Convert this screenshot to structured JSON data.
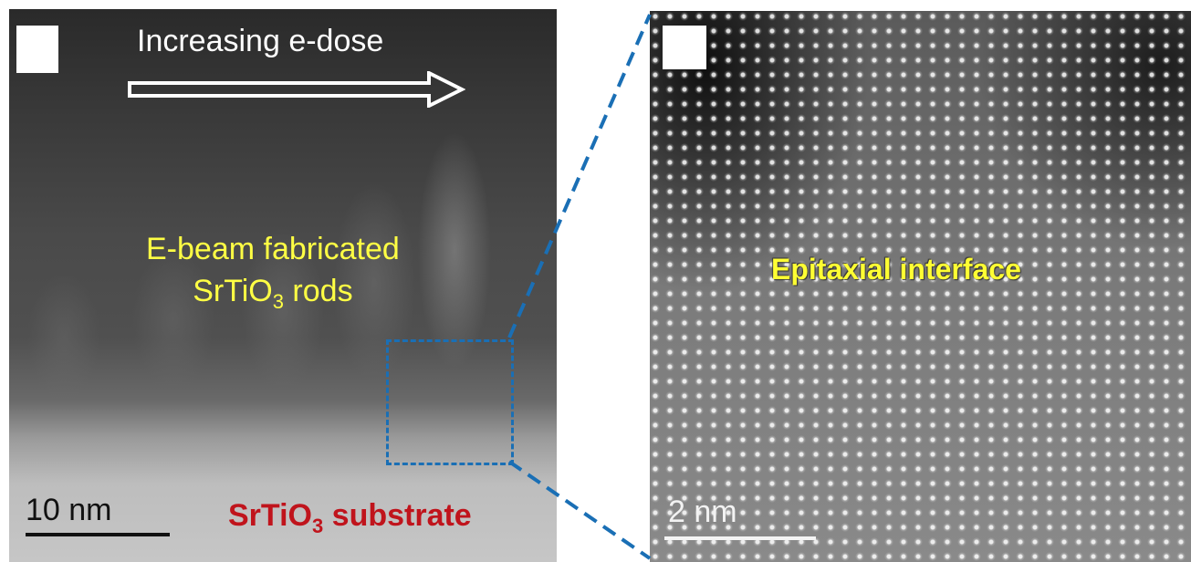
{
  "panel_a": {
    "label": "",
    "dose_annotation": "Increasing e-dose",
    "rods_label_line1": "E-beam fabricated",
    "rods_label_line2_pre": "SrTiO",
    "rods_label_line2_sub": "3",
    "rods_label_line2_post": " rods",
    "substrate_label_pre": "SrTiO",
    "substrate_label_sub": "3",
    "substrate_label_post": " substrate",
    "scale_bar": "10 nm"
  },
  "panel_b": {
    "label": "",
    "interface_label": "Epitaxial interface",
    "scale_bar": "2 nm"
  },
  "colors": {
    "annotation_yellow": "#ffff44",
    "substrate_red": "#c0141c",
    "roi_blue": "#1a6fb5"
  }
}
